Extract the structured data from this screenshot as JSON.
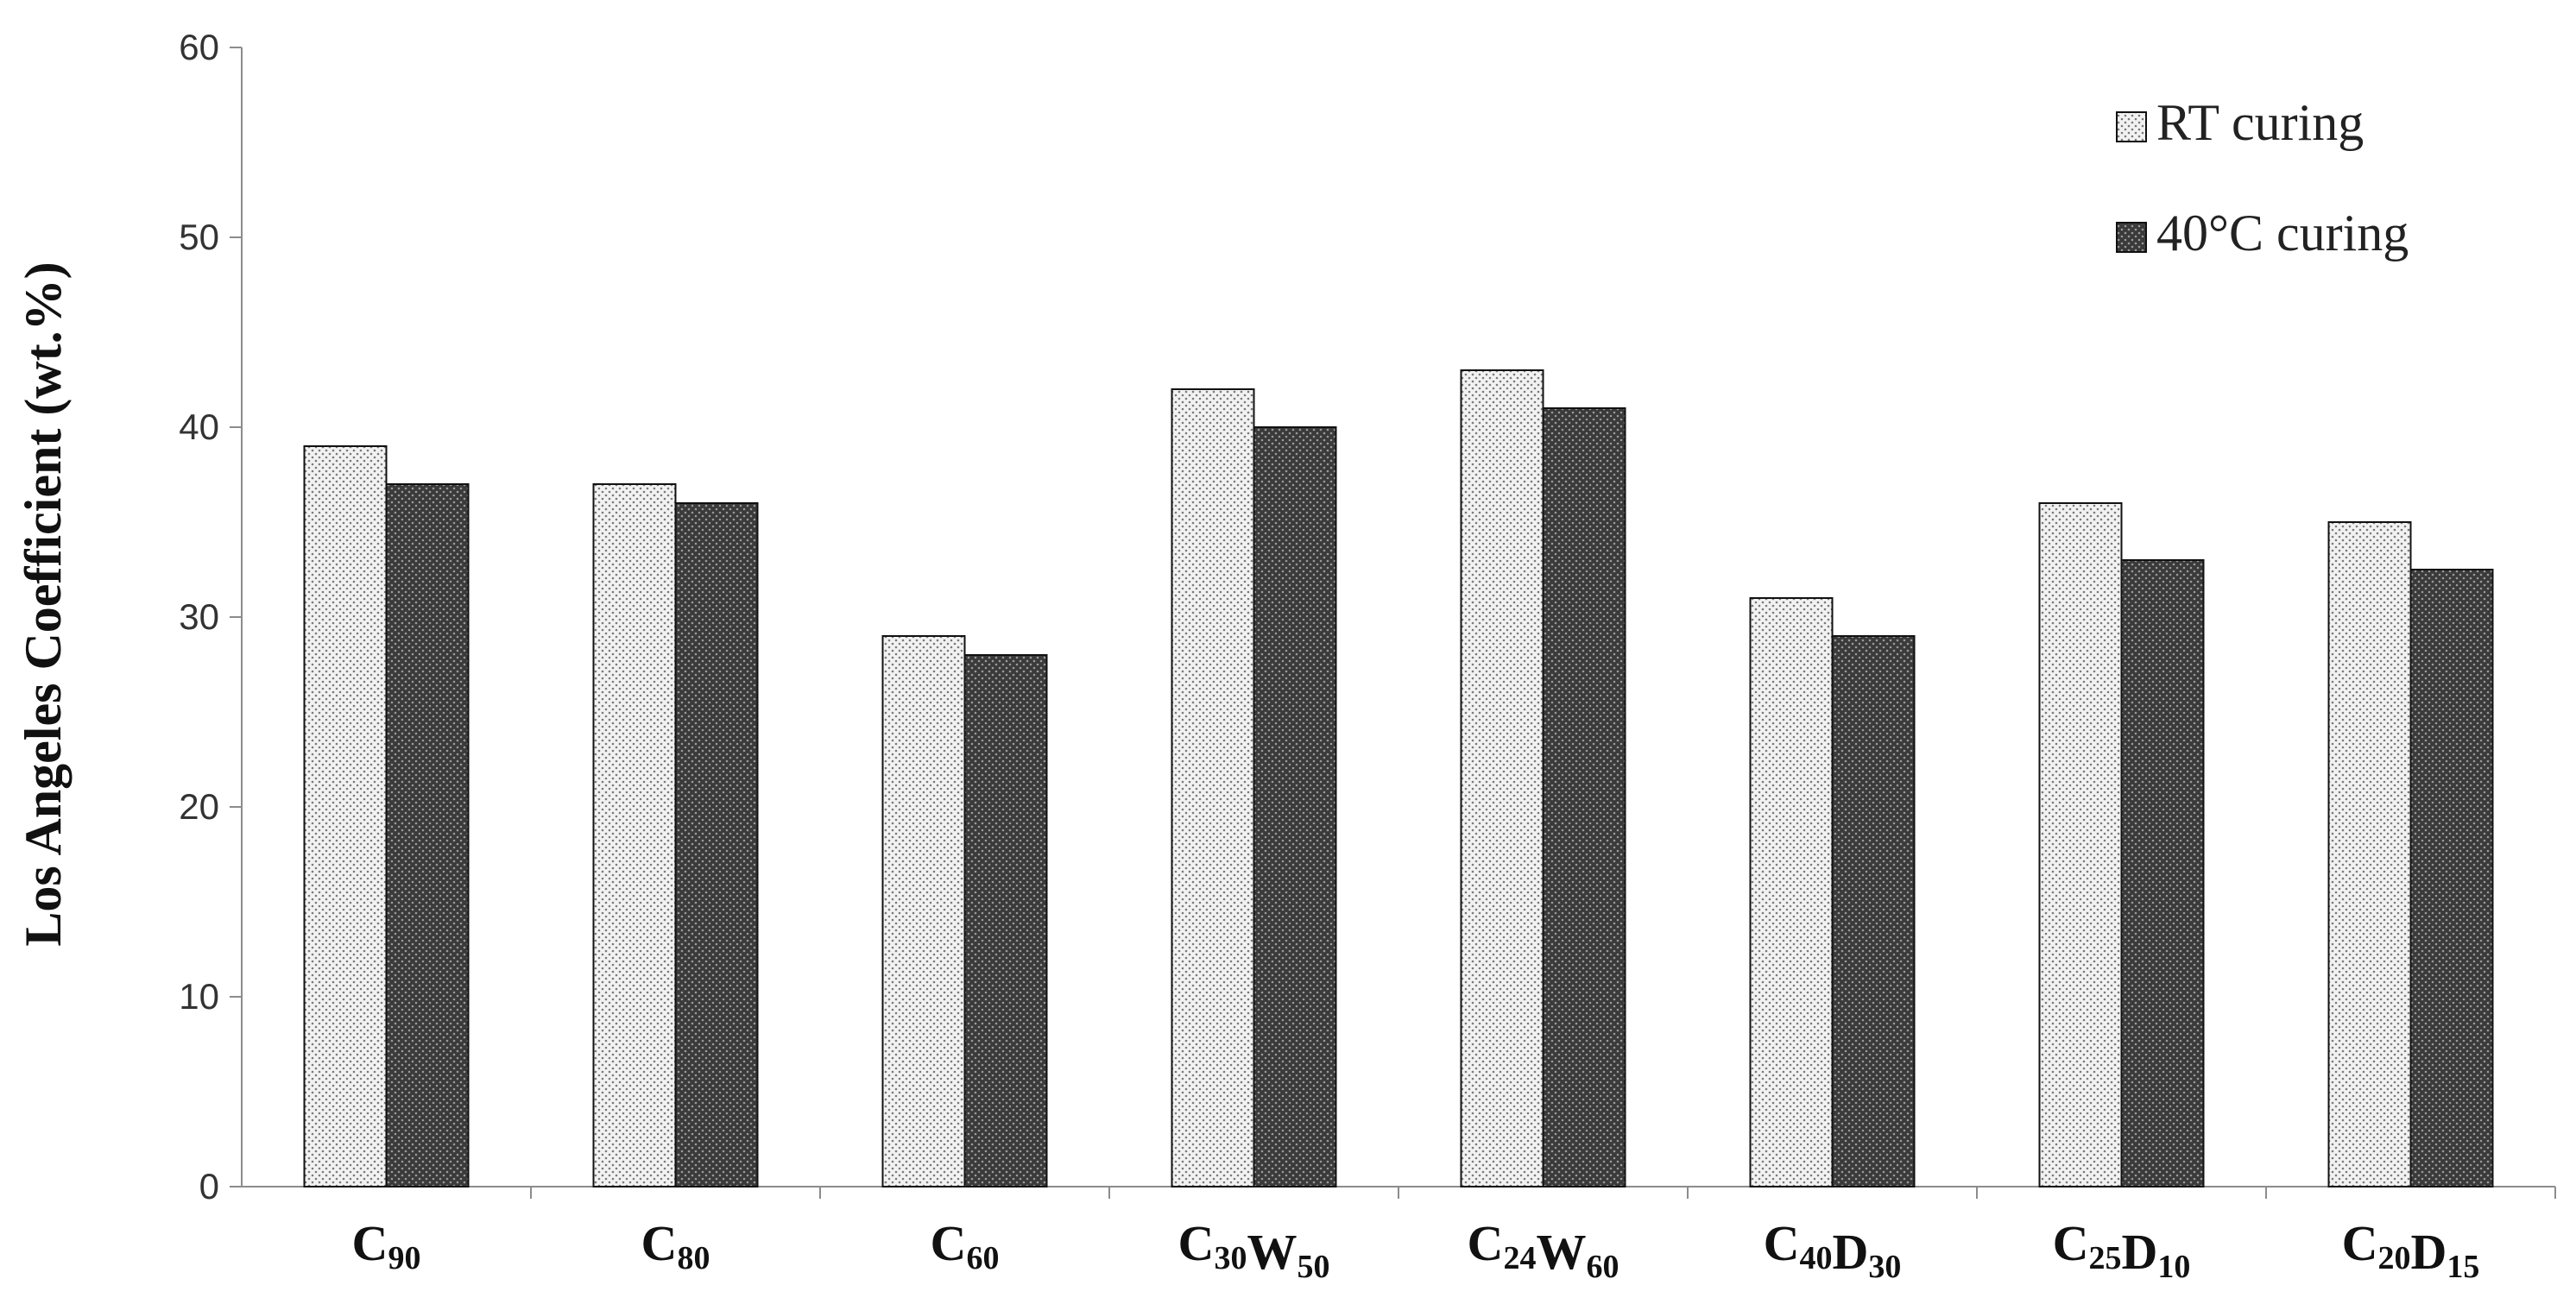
{
  "chart_data": {
    "type": "bar",
    "ylabel": "Los Angeles Coefficient (wt.%)",
    "xlabel": "",
    "ylim": [
      0,
      60
    ],
    "yticks": [
      0,
      10,
      20,
      30,
      40,
      50,
      60
    ],
    "grid": false,
    "legend_position": "top-right",
    "categories": [
      {
        "label": "C90",
        "parts": [
          {
            "base": "C",
            "sub": "90"
          }
        ]
      },
      {
        "label": "C80",
        "parts": [
          {
            "base": "C",
            "sub": "80"
          }
        ]
      },
      {
        "label": "C60",
        "parts": [
          {
            "base": "C",
            "sub": "60"
          }
        ]
      },
      {
        "label": "C30W50",
        "parts": [
          {
            "base": "C",
            "sub": "30"
          },
          {
            "base": "W",
            "sub": "50"
          }
        ]
      },
      {
        "label": "C24W60",
        "parts": [
          {
            "base": "C",
            "sub": "24"
          },
          {
            "base": "W",
            "sub": "60"
          }
        ]
      },
      {
        "label": "C40D30",
        "parts": [
          {
            "base": "C",
            "sub": "40"
          },
          {
            "base": "D",
            "sub": "30"
          }
        ]
      },
      {
        "label": "C25D10",
        "parts": [
          {
            "base": "C",
            "sub": "25"
          },
          {
            "base": "D",
            "sub": "10"
          }
        ]
      },
      {
        "label": "C20D15",
        "parts": [
          {
            "base": "C",
            "sub": "20"
          },
          {
            "base": "D",
            "sub": "15"
          }
        ]
      }
    ],
    "series": [
      {
        "name": "RT curing",
        "pattern": "light-dotted",
        "values": [
          39,
          37,
          29,
          42,
          43,
          31,
          36,
          35
        ]
      },
      {
        "name": "40°C curing",
        "pattern": "dark-dotted",
        "values": [
          37,
          36,
          28,
          40,
          41,
          29,
          33,
          32.5
        ]
      }
    ]
  }
}
